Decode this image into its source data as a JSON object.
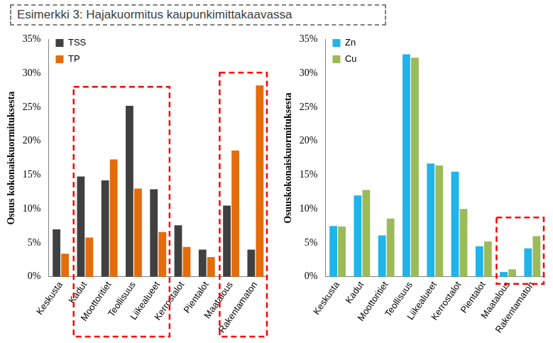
{
  "title": "Esimerkki 3: Hajakuormitus kaupunkimittakaavassa",
  "chart_data": [
    {
      "type": "bar",
      "ylabel": "Osuus kokonaiskuormituksesta",
      "categories": [
        "Keskusta",
        "Kadut",
        "Moottoritiet",
        "Teollisuus",
        "Liikealueet",
        "Kerrostalot",
        "Pientalot",
        "Maatalous",
        "Rakentamaton"
      ],
      "series": [
        {
          "name": "TSS",
          "color": "#404040",
          "values": [
            7.0,
            14.8,
            14.2,
            25.2,
            12.9,
            7.6,
            4.0,
            10.5,
            4.0
          ]
        },
        {
          "name": "TP",
          "color": "#e46c0a",
          "values": [
            3.4,
            5.8,
            17.3,
            13.0,
            6.6,
            4.4,
            2.9,
            18.6,
            28.2
          ]
        }
      ],
      "ylim": [
        0,
        35
      ],
      "yticks": [
        {
          "value": 0,
          "label": "0%"
        },
        {
          "value": 5,
          "label": "5%"
        },
        {
          "value": 10,
          "label": "10%"
        },
        {
          "value": 15,
          "label": "15%"
        },
        {
          "value": 20,
          "label": "20%"
        },
        {
          "value": 25,
          "label": "25%"
        },
        {
          "value": 30,
          "label": "30%"
        },
        {
          "value": 35,
          "label": "35%"
        }
      ],
      "grid": false,
      "legend": "top-left"
    },
    {
      "type": "bar",
      "ylabel": "Osuuskokonaiskuormituksesta",
      "categories": [
        "Keskusta",
        "Kadut",
        "Moottoritiet",
        "Teollisuus",
        "Liikealueet",
        "Kerrostalot",
        "Pientalot",
        "Maatalous",
        "Rakentamaton"
      ],
      "series": [
        {
          "name": "Zn",
          "color": "#1fb4ea",
          "values": [
            7.5,
            12.0,
            6.1,
            32.8,
            16.7,
            15.5,
            4.5,
            0.7,
            4.2
          ]
        },
        {
          "name": "Cu",
          "color": "#9bbb59",
          "values": [
            7.4,
            12.8,
            8.6,
            32.3,
            16.4,
            10.0,
            5.2,
            1.1,
            6.0
          ]
        }
      ],
      "ylim": [
        0,
        35
      ],
      "yticks": [
        {
          "value": 0,
          "label": "0%"
        },
        {
          "value": 5,
          "label": "5%"
        },
        {
          "value": 10,
          "label": "10%"
        },
        {
          "value": 15,
          "label": "15%"
        },
        {
          "value": 20,
          "label": "20%"
        },
        {
          "value": 25,
          "label": "25%"
        },
        {
          "value": 30,
          "label": "30%"
        },
        {
          "value": 35,
          "label": "35%"
        }
      ],
      "grid": false,
      "legend": "top-left"
    }
  ]
}
